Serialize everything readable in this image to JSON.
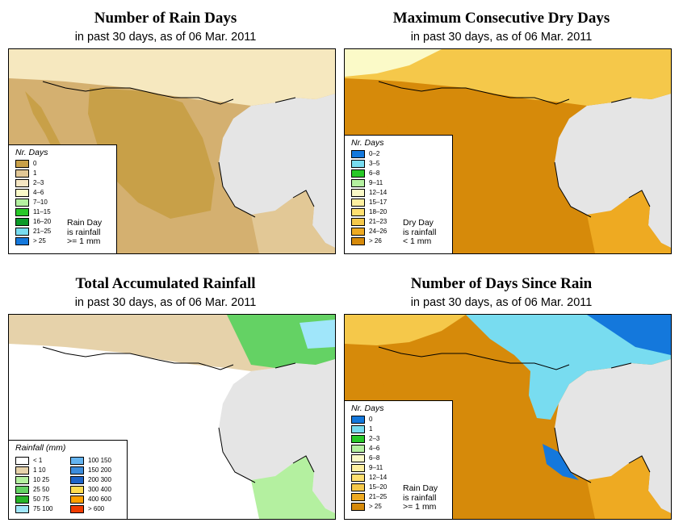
{
  "panels": [
    {
      "title": "Number of Rain Days",
      "subtitle": "in past 30 days, as of  06 Mar. 2011",
      "legend": {
        "title": "Nr. Days",
        "items": [
          {
            "label": "0",
            "color": "#c8a048"
          },
          {
            "label": "1",
            "color": "#e2c896"
          },
          {
            "label": "2–3",
            "color": "#f5e6c2"
          },
          {
            "label": "4–6",
            "color": "#fbfac8"
          },
          {
            "label": "7–10",
            "color": "#b4f0a0"
          },
          {
            "label": "11–15",
            "color": "#28c828"
          },
          {
            "label": "16–20",
            "color": "#0a9a28"
          },
          {
            "label": "21–25",
            "color": "#78dcf0"
          },
          {
            "label": "> 25",
            "color": "#1478dc"
          }
        ]
      },
      "note": [
        "Rain Day",
        "is rainfall",
        ">= 1 mm"
      ]
    },
    {
      "title": "Maximum Consecutive Dry Days",
      "subtitle": "in past 30 days, as of  06 Mar. 2011",
      "legend": {
        "title": "Nr. Days",
        "items": [
          {
            "label": "0–2",
            "color": "#1478dc"
          },
          {
            "label": "3–5",
            "color": "#78dcf0"
          },
          {
            "label": "6–8",
            "color": "#28c828"
          },
          {
            "label": "9–11",
            "color": "#b4f0a0"
          },
          {
            "label": "12–14",
            "color": "#fbfac8"
          },
          {
            "label": "15–17",
            "color": "#fff0a0"
          },
          {
            "label": "18–20",
            "color": "#ffe070"
          },
          {
            "label": "21–23",
            "color": "#f5c84a"
          },
          {
            "label": "24–26",
            "color": "#eeaa22"
          },
          {
            "label": "> 26",
            "color": "#d68a0a"
          }
        ]
      },
      "note": [
        "Dry Day",
        "is rainfall",
        "< 1 mm"
      ]
    },
    {
      "title": "Total Accumulated Rainfall",
      "subtitle": "in past 30 days, as of  06 Mar. 2011",
      "legend": {
        "title": "Rainfall (mm)",
        "columns": [
          [
            {
              "label": "< 1",
              "color": "#ffffff"
            },
            {
              "label": "1   10",
              "color": "#e6d2aa"
            },
            {
              "label": "10   25",
              "color": "#b4f0a0"
            },
            {
              "label": "25   50",
              "color": "#64d264"
            },
            {
              "label": "50   75",
              "color": "#28b428"
            },
            {
              "label": "75   100",
              "color": "#a0e6fa"
            }
          ],
          [
            {
              "label": "100   150",
              "color": "#64b4f0"
            },
            {
              "label": "150   200",
              "color": "#3c8cdc"
            },
            {
              "label": "200   300",
              "color": "#1e64c8"
            },
            {
              "label": "300   400",
              "color": "#ffdc50"
            },
            {
              "label": "400   600",
              "color": "#ffa000"
            },
            {
              "label": "> 600",
              "color": "#f03c00"
            }
          ]
        ]
      }
    },
    {
      "title": "Number of Days Since Rain",
      "subtitle": "in past 30 days, as of  06 Mar. 2011",
      "legend": {
        "title": "Nr. Days",
        "items": [
          {
            "label": "0",
            "color": "#1478dc"
          },
          {
            "label": "1",
            "color": "#78dcf0"
          },
          {
            "label": "2–3",
            "color": "#28c828"
          },
          {
            "label": "4–6",
            "color": "#b4f0a0"
          },
          {
            "label": "6–8",
            "color": "#fbfac8"
          },
          {
            "label": "9–11",
            "color": "#fff0a0"
          },
          {
            "label": "12–14",
            "color": "#ffe070"
          },
          {
            "label": "15–20",
            "color": "#f5c84a"
          },
          {
            "label": "21–25",
            "color": "#eeaa22"
          },
          {
            "label": "> 25",
            "color": "#d68a0a"
          }
        ]
      },
      "note": [
        "Rain Day",
        "is rainfall",
        ">= 1 mm"
      ]
    }
  ],
  "colors": {
    "water": "#e5e5e5",
    "border": "#000000"
  }
}
